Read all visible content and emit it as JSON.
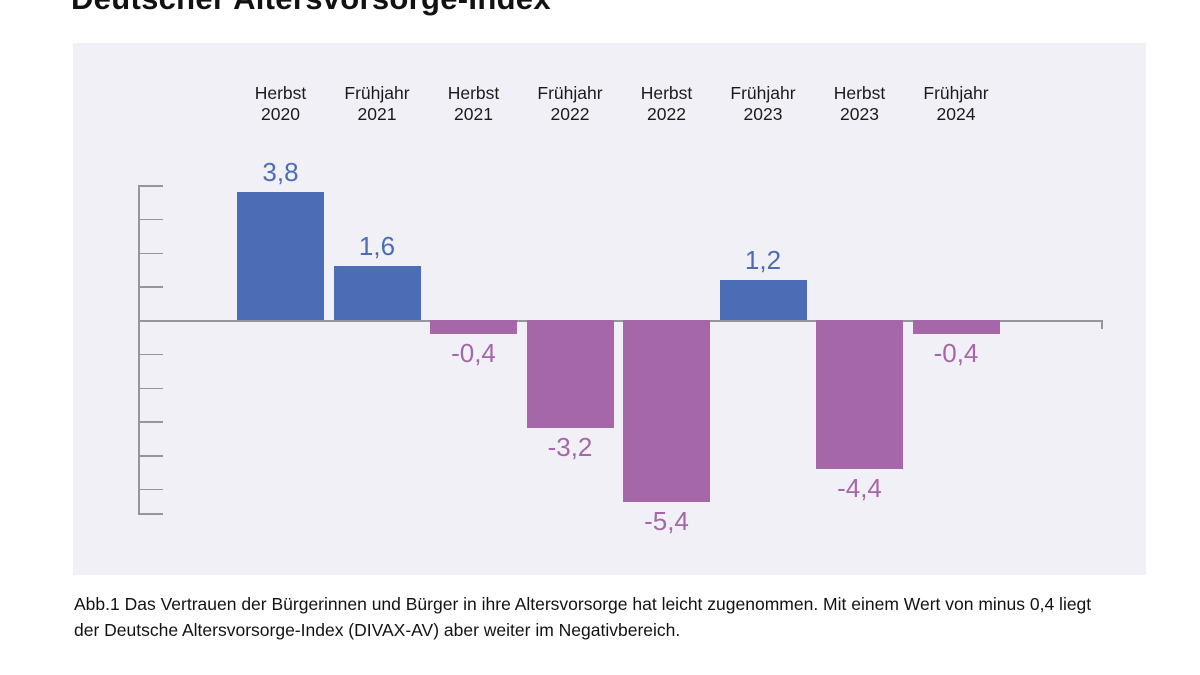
{
  "title": "Deutscher Altersvorsorge-Index",
  "caption": {
    "line1": "Abb.1 Das Vertrauen der Bürgerinnen und Bürger in ihre Altersvorsorge hat leicht zugenommen. Mit einem Wert von minus 0,4 liegt",
    "line2": "der Deutsche Altersvorsorge-Index (DIVAX-AV) aber weiter im Negativbereich."
  },
  "colors": {
    "positive_bar": "#4b6db5",
    "negative_bar": "#a667a8",
    "panel_background": "#f1f0f7",
    "axis": "#95959e",
    "category_text": "#1b1b1b",
    "caption_text": "#121212"
  },
  "chart_data": {
    "type": "bar",
    "title": "Deutscher Altersvorsorge-Index",
    "categories": [
      "Herbst\n2020",
      "Frühjahr\n2021",
      "Herbst\n2021",
      "Frühjahr\n2022",
      "Herbst\n2022",
      "Frühjahr\n2023",
      "Herbst\n2023",
      "Frühjahr\n2024"
    ],
    "values": [
      3.8,
      1.6,
      -0.4,
      -3.2,
      -5.4,
      1.2,
      -4.4,
      -0.4
    ],
    "value_labels": [
      "3,8",
      "1,6",
      "-0,4",
      "-3,2",
      "-5,4",
      "1,2",
      "-4,4",
      "-0,4"
    ],
    "xlabel": "",
    "ylabel": "",
    "ylim": [
      -5.7,
      4.0
    ],
    "tick_values": [
      4,
      3,
      2,
      1,
      -1,
      -2,
      -3,
      -4,
      -5
    ],
    "grid": false,
    "legend": "none",
    "data_label_position": "outside-end",
    "series_colors": {
      "positive": "#4b6db5",
      "negative": "#a667a8"
    }
  }
}
